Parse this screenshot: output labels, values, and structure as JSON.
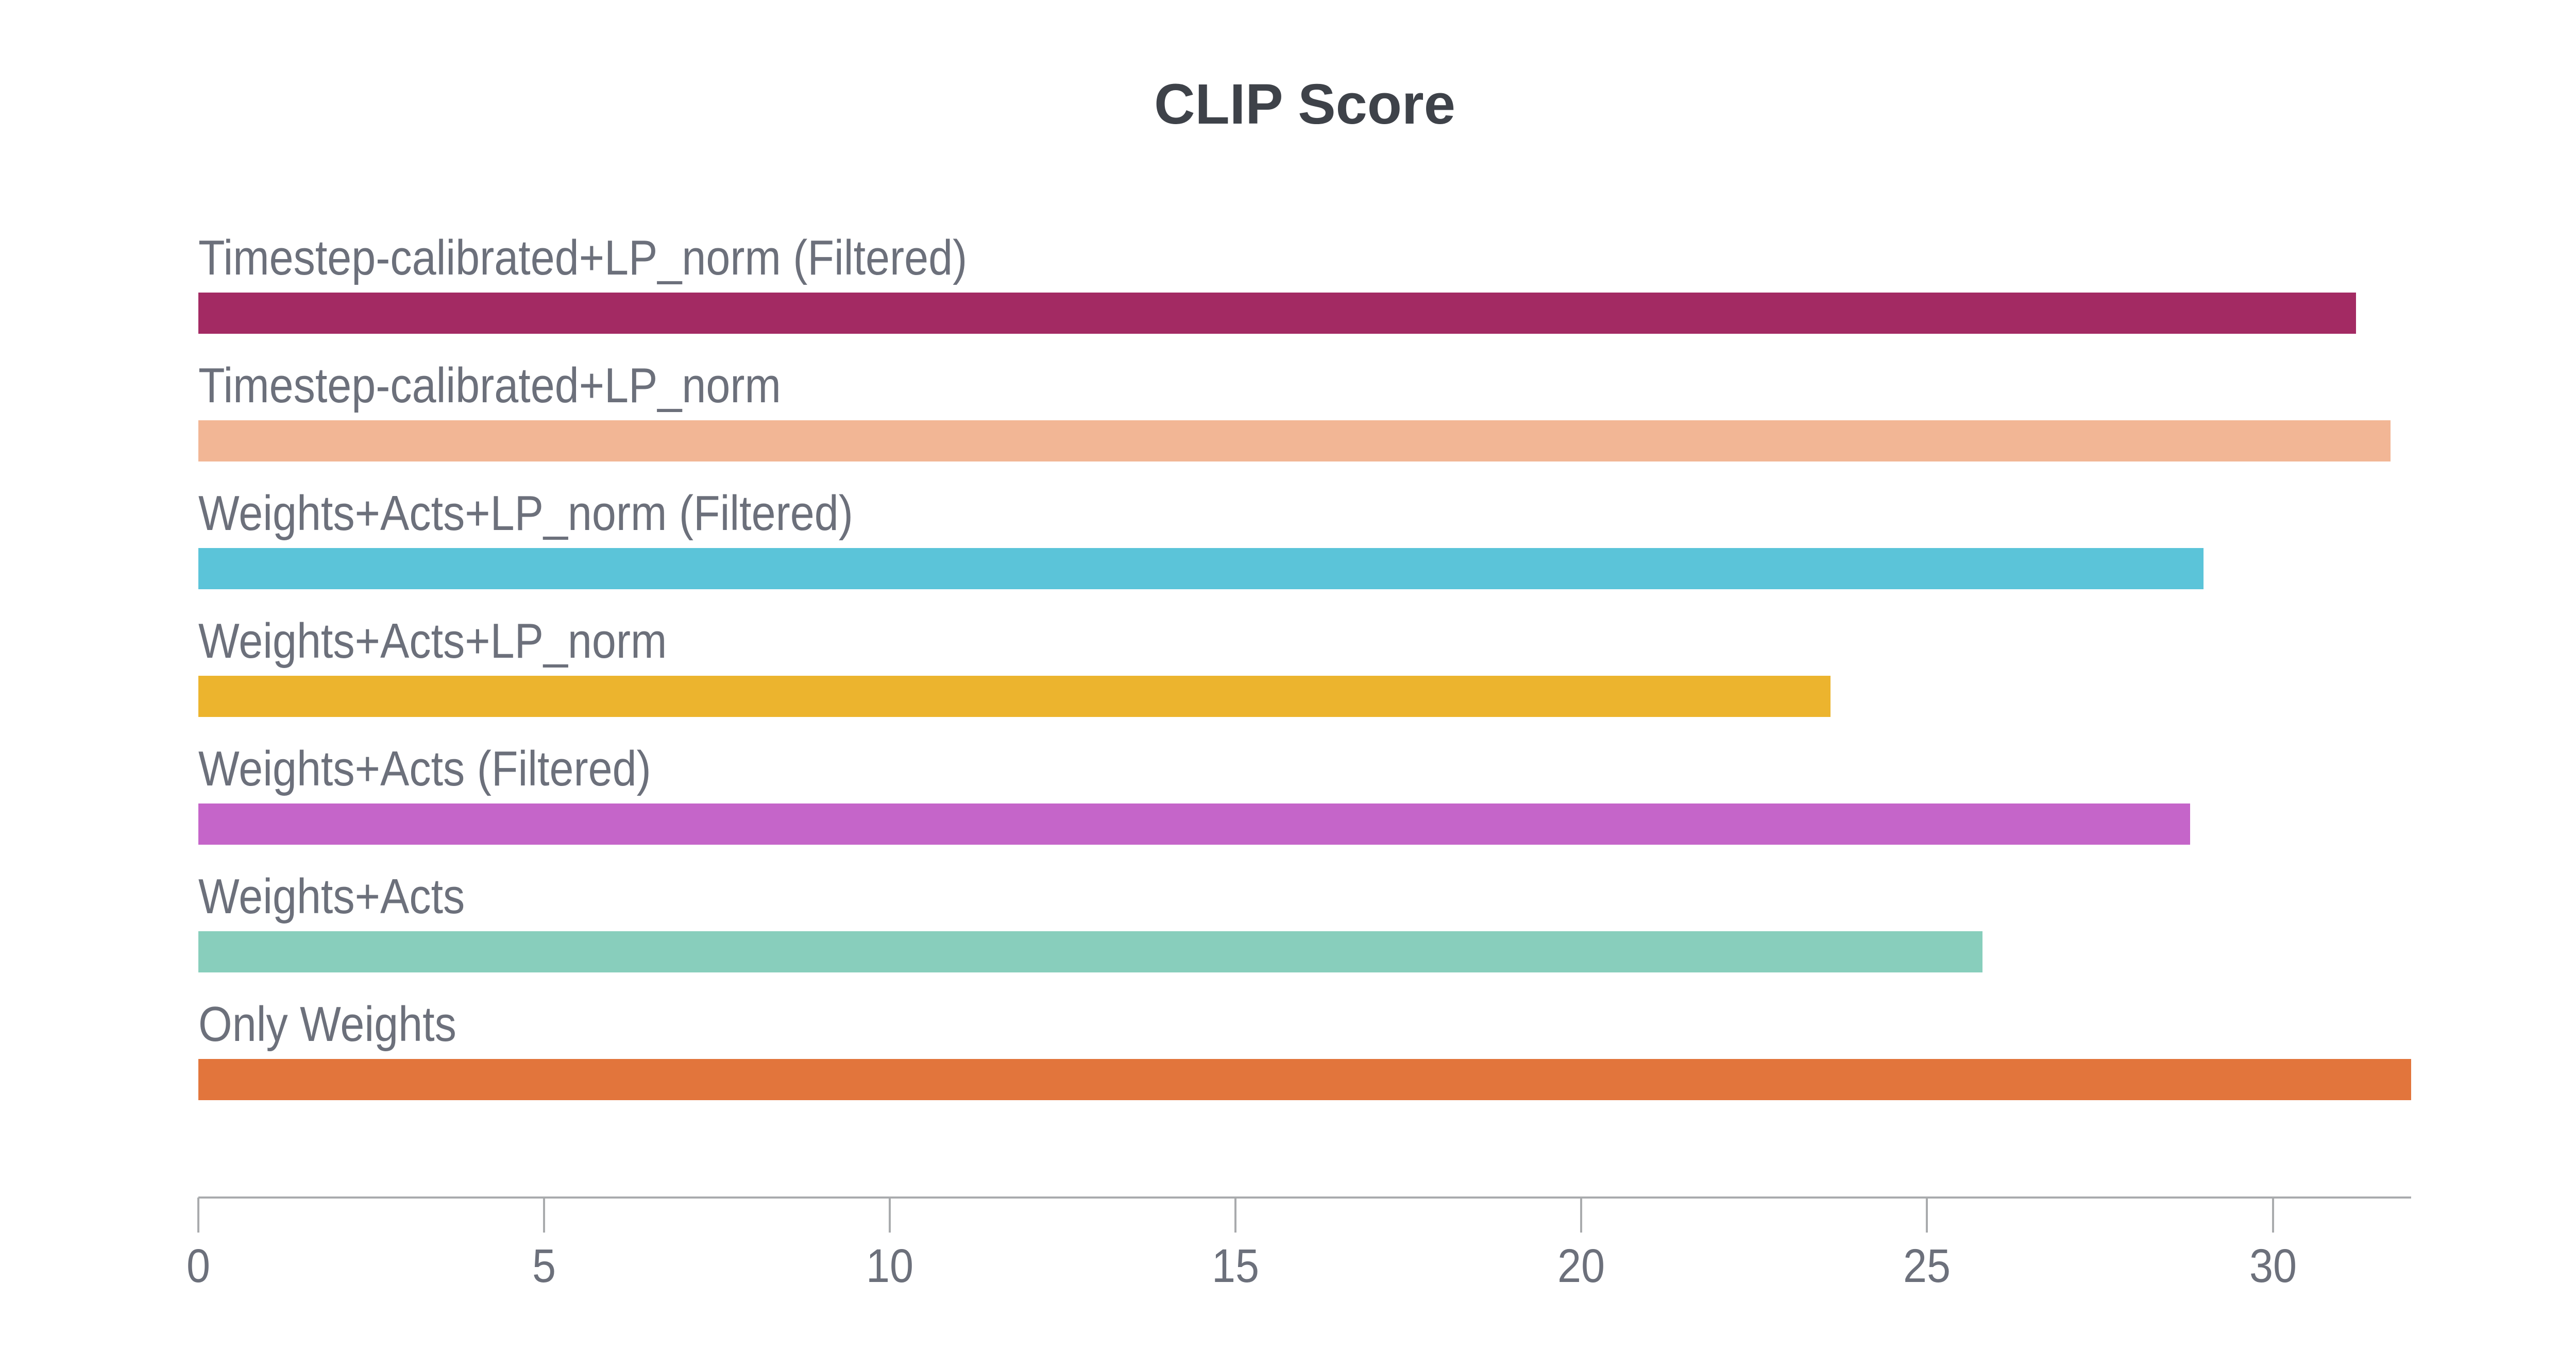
{
  "chart_data": {
    "type": "bar",
    "orientation": "horizontal",
    "title": "CLIP Score",
    "categories": [
      "Timestep-calibrated+LP_norm (Filtered)",
      "Timestep-calibrated+LP_norm",
      "Weights+Acts+LP_norm (Filtered)",
      "Weights+Acts+LP_norm",
      "Weights+Acts (Filtered)",
      "Weights+Acts",
      "Only Weights"
    ],
    "values": [
      31.2,
      31.7,
      29.0,
      23.6,
      28.8,
      25.8,
      32.0
    ],
    "colors": [
      "#A32A63",
      "#F2B695",
      "#5BC4D9",
      "#ECB42E",
      "#C565C9",
      "#88CEBC",
      "#E2753C"
    ],
    "xlabel": "",
    "ylabel": "",
    "xlim": [
      0,
      32
    ],
    "x_ticks": [
      0,
      5,
      10,
      15,
      20,
      25,
      30
    ],
    "grid": false,
    "legend_position": "none",
    "bar_label_position": "above-bar",
    "title_color": "#3E4249",
    "label_color": "#6C707B",
    "tick_label_color": "#6C707B",
    "axis_color": "#A9ABAD",
    "background_color": "#FFFFFF"
  }
}
